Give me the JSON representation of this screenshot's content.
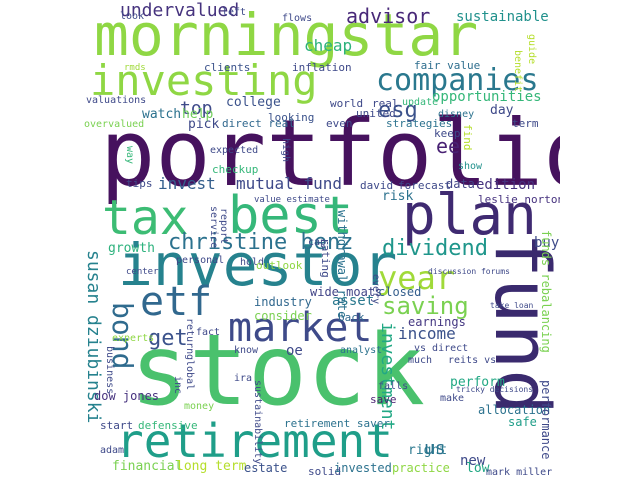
{
  "palette": {
    "dark_purple": "#46125e",
    "indigo": "#3b4e8a",
    "teal": "#1f7f8c",
    "green": "#35b779",
    "lime": "#a0da39",
    "yellow": "#fde725",
    "blue_gray": "#5b6ea3"
  },
  "words": [
    {
      "text": "portfolio",
      "color": "#46125e"
    },
    {
      "text": "stock",
      "color": "#4ac16d"
    },
    {
      "text": "morningstar",
      "color": "#8fd744"
    },
    {
      "text": "fund",
      "color": "#3a2a6e"
    },
    {
      "text": "best",
      "color": "#35b779"
    },
    {
      "text": "tax",
      "color": "#3cbc74"
    },
    {
      "text": "plan",
      "color": "#3f2a71"
    },
    {
      "text": "investor",
      "color": "#26828e"
    },
    {
      "text": "retirement",
      "color": "#1f9e89"
    },
    {
      "text": "investing",
      "color": "#8fd744"
    },
    {
      "text": "companies",
      "color": "#2a788e"
    },
    {
      "text": "market",
      "color": "#3e4a89"
    },
    {
      "text": "christine benz",
      "color": "#2c728e"
    },
    {
      "text": "etf",
      "color": "#31688e"
    },
    {
      "text": "year",
      "color": "#a0da39"
    },
    {
      "text": "bond",
      "color": "#2f6b8e"
    },
    {
      "text": "dividend",
      "color": "#1f968b"
    },
    {
      "text": "saving",
      "color": "#7ad151"
    },
    {
      "text": "get",
      "color": "#3b528b"
    },
    {
      "text": "undervalued",
      "color": "#46337e"
    },
    {
      "text": "advisor",
      "color": "#482878"
    },
    {
      "text": "cheap",
      "color": "#2db27d"
    },
    {
      "text": "esg",
      "color": "#3b528b"
    },
    {
      "text": "top",
      "color": "#3e4a89"
    },
    {
      "text": "ee",
      "color": "#482173"
    },
    {
      "text": "invest",
      "color": "#355f8d"
    },
    {
      "text": "mutual fund",
      "color": "#3e4989"
    },
    {
      "text": "edition",
      "color": "#46327e"
    },
    {
      "text": "sustainable",
      "color": "#21918c"
    },
    {
      "text": "fair value",
      "color": "#2e6e8e"
    },
    {
      "text": "opportunities",
      "color": "#35b779"
    },
    {
      "text": "susan dziubinski",
      "color": "#26828e"
    },
    {
      "text": "investment",
      "color": "#22a884"
    },
    {
      "text": "asset",
      "color": "#2a788e"
    },
    {
      "text": "income",
      "color": "#3b528b"
    },
    {
      "text": "us",
      "color": "#2c728e"
    },
    {
      "text": "new",
      "color": "#3e4a89"
    },
    {
      "text": "low",
      "color": "#22a884"
    },
    {
      "text": "right",
      "color": "#2a788e"
    },
    {
      "text": "wide moats",
      "color": "#414487"
    },
    {
      "text": "risk",
      "color": "#2c728e"
    },
    {
      "text": "buy",
      "color": "#3e4a89"
    },
    {
      "text": "growth",
      "color": "#2db27d"
    },
    {
      "text": "earnings",
      "color": "#453882"
    },
    {
      "text": "closed",
      "color": "#355f8d"
    },
    {
      "text": "dow jones",
      "color": "#46327e"
    },
    {
      "text": "perform",
      "color": "#22a884"
    },
    {
      "text": "allocation",
      "color": "#2c728e"
    },
    {
      "text": "performance",
      "color": "#3e4989"
    },
    {
      "text": "save",
      "color": "#481f70"
    },
    {
      "text": "safe",
      "color": "#1f9e89"
    },
    {
      "text": "financial",
      "color": "#7ad151"
    },
    {
      "text": "long term",
      "color": "#b5de2b"
    },
    {
      "text": "estate",
      "color": "#3b528b"
    },
    {
      "text": "solid",
      "color": "#3e4a89"
    },
    {
      "text": "invested",
      "color": "#2c728e"
    },
    {
      "text": "practice",
      "color": "#8fd744"
    },
    {
      "text": "mark miller",
      "color": "#3e4989"
    },
    {
      "text": "industry",
      "color": "#31688e"
    },
    {
      "text": "consider",
      "color": "#7ad151"
    },
    {
      "text": "back",
      "color": "#31688e"
    },
    {
      "text": "data",
      "color": "#414487"
    },
    {
      "text": "forecast",
      "color": "#3e4989"
    },
    {
      "text": "david",
      "color": "#3e4989"
    },
    {
      "text": "leslie norton",
      "color": "#46327e"
    },
    {
      "text": "college",
      "color": "#3b528b"
    },
    {
      "text": "world",
      "color": "#3e4989"
    },
    {
      "text": "real",
      "color": "#3e4989"
    },
    {
      "text": "united",
      "color": "#3e4989"
    },
    {
      "text": "strategies",
      "color": "#2c728e"
    },
    {
      "text": "watch",
      "color": "#2c728e"
    },
    {
      "text": "help",
      "color": "#6ece58"
    },
    {
      "text": "pick",
      "color": "#3e4989"
    },
    {
      "text": "direct real",
      "color": "#31688e"
    },
    {
      "text": "looking",
      "color": "#3b528b"
    },
    {
      "text": "even",
      "color": "#3e4989"
    },
    {
      "text": "day",
      "color": "#3e4989"
    },
    {
      "text": "term",
      "color": "#3e4989"
    },
    {
      "text": "keep",
      "color": "#3e4989"
    },
    {
      "text": "find",
      "color": "#b5de2b"
    },
    {
      "text": "show",
      "color": "#21918c"
    },
    {
      "text": "tips",
      "color": "#3e4989"
    },
    {
      "text": "expected",
      "color": "#3e4989"
    },
    {
      "text": "checkup",
      "color": "#35b779"
    },
    {
      "text": "value estimate",
      "color": "#3e4989"
    },
    {
      "text": "inflation",
      "color": "#3e4989"
    },
    {
      "text": "clients",
      "color": "#3b528b"
    },
    {
      "text": "rmds",
      "color": "#a0da39"
    },
    {
      "text": "valuations",
      "color": "#3e4989"
    },
    {
      "text": "overvalued",
      "color": "#7ad151"
    },
    {
      "text": "update",
      "color": "#35b779"
    },
    {
      "text": "disney",
      "color": "#2c728e"
    },
    {
      "text": "benefit",
      "color": "#b5de2b"
    },
    {
      "text": "guide",
      "color": "#b5de2b"
    },
    {
      "text": "look",
      "color": "#3e4989"
    },
    {
      "text": "left",
      "color": "#3e4989"
    },
    {
      "text": "flows",
      "color": "#3e4989"
    },
    {
      "text": "way",
      "color": "#35b779"
    },
    {
      "text": "high",
      "color": "#3e4989"
    },
    {
      "text": "report",
      "color": "#3e4989"
    },
    {
      "text": "service",
      "color": "#3e4989"
    },
    {
      "text": "cap",
      "color": "#3e4989"
    },
    {
      "text": "hold",
      "color": "#3e4989"
    },
    {
      "text": "outlook",
      "color": "#8fd744"
    },
    {
      "text": "personal",
      "color": "#3e4989"
    },
    {
      "text": "center",
      "color": "#3e4989"
    },
    {
      "text": "rating",
      "color": "#3e4989"
    },
    {
      "text": "withdrawal rate",
      "color": "#2c728e"
    },
    {
      "text": "discussion forums",
      "color": "#3e4989"
    },
    {
      "text": "funds rebalancing",
      "color": "#7ad151"
    },
    {
      "text": "take loan",
      "color": "#3e4989"
    },
    {
      "text": "business",
      "color": "#3e4989"
    },
    {
      "text": "experts",
      "color": "#8fd744"
    },
    {
      "text": "fact",
      "color": "#3e4989"
    },
    {
      "text": "return",
      "color": "#3e4989"
    },
    {
      "text": "global",
      "color": "#3e4989"
    },
    {
      "text": "inc",
      "color": "#3e4989"
    },
    {
      "text": "know",
      "color": "#3e4989"
    },
    {
      "text": "analyst",
      "color": "#2c728e"
    },
    {
      "text": "ira",
      "color": "#3e4989"
    },
    {
      "text": "oe",
      "color": "#3e4989"
    },
    {
      "text": "every",
      "color": "#3e4989"
    },
    {
      "text": "vs direct",
      "color": "#3e4989"
    },
    {
      "text": "much",
      "color": "#3e4989"
    },
    {
      "text": "reits vs",
      "color": "#3e4989"
    },
    {
      "text": "tricky decisions",
      "color": "#3e4989"
    },
    {
      "text": "make",
      "color": "#3e4989"
    },
    {
      "text": "falls",
      "color": "#3e4989"
    },
    {
      "text": "money",
      "color": "#7ad151"
    },
    {
      "text": "sustainability",
      "color": "#3e4989"
    },
    {
      "text": "retirement saver",
      "color": "#2c728e"
    },
    {
      "text": "defensive",
      "color": "#35b779"
    },
    {
      "text": "start",
      "color": "#3e4989"
    },
    {
      "text": "adam",
      "color": "#3e4989"
    }
  ]
}
